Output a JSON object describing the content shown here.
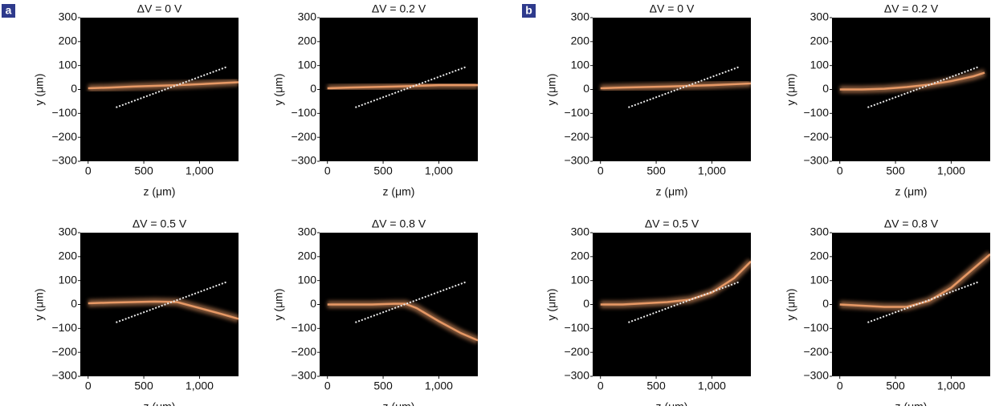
{
  "chart_data": [
    {
      "type": "beam",
      "panel": "a",
      "title": "ΔV = 0 V",
      "xlabel": "z (μm)",
      "ylabel": "y (μm)",
      "xlim": [
        -70,
        1350
      ],
      "ylim": [
        -300,
        300
      ],
      "xticks": [
        0,
        500,
        {
          "value": 1000,
          "label": "1,000"
        }
      ],
      "yticks": [
        {
          "value": -300,
          "label": "−300"
        },
        {
          "value": -200,
          "label": "−200"
        },
        {
          "value": -100,
          "label": "−100"
        },
        0,
        100,
        200,
        300
      ],
      "series": [
        {
          "color": "#f2a06a",
          "x": [
            0,
            200,
            400,
            600,
            800,
            1000,
            1200,
            1350
          ],
          "values": [
            5,
            8,
            12,
            15,
            18,
            22,
            27,
            30
          ]
        },
        {
          "color": "#e8e8e8",
          "dashed": true,
          "x": [
            250,
            1250
          ],
          "values": [
            -75,
            95
          ]
        }
      ]
    },
    {
      "type": "beam",
      "title": "ΔV = 0.2 V",
      "xlabel": "z (μm)",
      "ylabel": "y (μm)",
      "xlim": [
        -70,
        1350
      ],
      "ylim": [
        -300,
        300
      ],
      "xticks": [
        0,
        500,
        {
          "value": 1000,
          "label": "1,000"
        }
      ],
      "yticks": [
        {
          "value": -300,
          "label": "−300"
        },
        {
          "value": -200,
          "label": "−200"
        },
        {
          "value": -100,
          "label": "−100"
        },
        0,
        100,
        200,
        300
      ],
      "series": [
        {
          "color": "#f2a06a",
          "x": [
            0,
            200,
            400,
            600,
            800,
            1000,
            1200,
            1350
          ],
          "values": [
            5,
            8,
            10,
            12,
            15,
            18,
            18,
            18
          ]
        },
        {
          "color": "#e8e8e8",
          "dashed": true,
          "x": [
            250,
            1250
          ],
          "values": [
            -75,
            95
          ]
        }
      ]
    },
    {
      "type": "beam",
      "title": "ΔV = 0.5 V",
      "xlabel": "z (μm)",
      "ylabel": "y (μm)",
      "xlim": [
        -70,
        1350
      ],
      "ylim": [
        -300,
        300
      ],
      "xticks": [
        0,
        500,
        {
          "value": 1000,
          "label": "1,000"
        }
      ],
      "yticks": [
        {
          "value": -300,
          "label": "−300"
        },
        {
          "value": -200,
          "label": "−200"
        },
        {
          "value": -100,
          "label": "−100"
        },
        0,
        100,
        200,
        300
      ],
      "series": [
        {
          "color": "#f2a06a",
          "x": [
            0,
            200,
            400,
            600,
            800,
            1000,
            1200,
            1350
          ],
          "values": [
            5,
            8,
            10,
            12,
            10,
            -15,
            -40,
            -60
          ]
        },
        {
          "color": "#e8e8e8",
          "dashed": true,
          "x": [
            250,
            1250
          ],
          "values": [
            -75,
            95
          ]
        }
      ]
    },
    {
      "type": "beam",
      "title": "ΔV = 0.8 V",
      "xlabel": "z (μm)",
      "ylabel": "y (μm)",
      "xlim": [
        -70,
        1350
      ],
      "ylim": [
        -300,
        300
      ],
      "xticks": [
        0,
        500,
        {
          "value": 1000,
          "label": "1,000"
        }
      ],
      "yticks": [
        {
          "value": -300,
          "label": "−300"
        },
        {
          "value": -200,
          "label": "−200"
        },
        {
          "value": -100,
          "label": "−100"
        },
        0,
        100,
        200,
        300
      ],
      "series": [
        {
          "color": "#f2a06a",
          "x": [
            0,
            200,
            400,
            600,
            700,
            800,
            1000,
            1200,
            1350
          ],
          "values": [
            0,
            0,
            0,
            3,
            3,
            -15,
            -70,
            -120,
            -150
          ]
        },
        {
          "color": "#e8e8e8",
          "dashed": true,
          "x": [
            250,
            1250
          ],
          "values": [
            -75,
            95
          ]
        }
      ]
    },
    {
      "type": "beam",
      "panel": "b",
      "title": "ΔV = 0 V",
      "xlabel": "z (μm)",
      "ylabel": "y (μm)",
      "xlim": [
        -70,
        1350
      ],
      "ylim": [
        -300,
        300
      ],
      "xticks": [
        0,
        500,
        {
          "value": 1000,
          "label": "1,000"
        }
      ],
      "yticks": [
        {
          "value": -300,
          "label": "−300"
        },
        {
          "value": -200,
          "label": "−200"
        },
        {
          "value": -100,
          "label": "−100"
        },
        0,
        100,
        200,
        300
      ],
      "series": [
        {
          "color": "#f2a06a",
          "x": [
            0,
            200,
            400,
            600,
            800,
            1000,
            1200,
            1350
          ],
          "values": [
            5,
            8,
            10,
            12,
            15,
            18,
            22,
            25
          ]
        },
        {
          "color": "#e8e8e8",
          "dashed": true,
          "x": [
            250,
            1250
          ],
          "values": [
            -75,
            95
          ]
        }
      ]
    },
    {
      "type": "beam",
      "title": "ΔV = 0.2 V",
      "xlabel": "z (μm)",
      "ylabel": "y (μm)",
      "xlim": [
        -70,
        1350
      ],
      "ylim": [
        -300,
        300
      ],
      "xticks": [
        0,
        500,
        {
          "value": 1000,
          "label": "1,000"
        }
      ],
      "yticks": [
        {
          "value": -300,
          "label": "−300"
        },
        {
          "value": -200,
          "label": "−200"
        },
        {
          "value": -100,
          "label": "−100"
        },
        0,
        100,
        200,
        300
      ],
      "series": [
        {
          "color": "#f2a06a",
          "x": [
            0,
            200,
            400,
            600,
            800,
            1000,
            1200,
            1300
          ],
          "values": [
            0,
            0,
            3,
            10,
            20,
            35,
            55,
            70
          ]
        },
        {
          "color": "#e8e8e8",
          "dashed": true,
          "x": [
            250,
            1250
          ],
          "values": [
            -75,
            95
          ]
        }
      ]
    },
    {
      "type": "beam",
      "title": "ΔV = 0.5 V",
      "xlabel": "z (μm)",
      "ylabel": "y (μm)",
      "xlim": [
        -70,
        1350
      ],
      "ylim": [
        -300,
        300
      ],
      "xticks": [
        0,
        500,
        {
          "value": 1000,
          "label": "1,000"
        }
      ],
      "yticks": [
        {
          "value": -300,
          "label": "−300"
        },
        {
          "value": -200,
          "label": "−200"
        },
        {
          "value": -100,
          "label": "−100"
        },
        0,
        100,
        200,
        300
      ],
      "series": [
        {
          "color": "#f2a06a",
          "x": [
            0,
            200,
            400,
            600,
            800,
            1000,
            1200,
            1350
          ],
          "values": [
            0,
            0,
            5,
            10,
            20,
            50,
            110,
            180
          ]
        },
        {
          "color": "#e8e8e8",
          "dashed": true,
          "x": [
            250,
            1250
          ],
          "values": [
            -75,
            95
          ]
        }
      ]
    },
    {
      "type": "beam",
      "title": "ΔV = 0.8 V",
      "xlabel": "z (μm)",
      "ylabel": "y (μm)",
      "xlim": [
        -70,
        1350
      ],
      "ylim": [
        -300,
        300
      ],
      "xticks": [
        0,
        500,
        {
          "value": 1000,
          "label": "1,000"
        }
      ],
      "yticks": [
        {
          "value": -300,
          "label": "−300"
        },
        {
          "value": -200,
          "label": "−200"
        },
        {
          "value": -100,
          "label": "−100"
        },
        0,
        100,
        200,
        300
      ],
      "series": [
        {
          "color": "#f2a06a",
          "x": [
            0,
            200,
            400,
            600,
            800,
            1000,
            1200,
            1350
          ],
          "values": [
            0,
            -5,
            -10,
            -10,
            15,
            70,
            150,
            210
          ]
        },
        {
          "color": "#e8e8e8",
          "dashed": true,
          "x": [
            250,
            1250
          ],
          "values": [
            -75,
            95
          ]
        }
      ]
    }
  ]
}
